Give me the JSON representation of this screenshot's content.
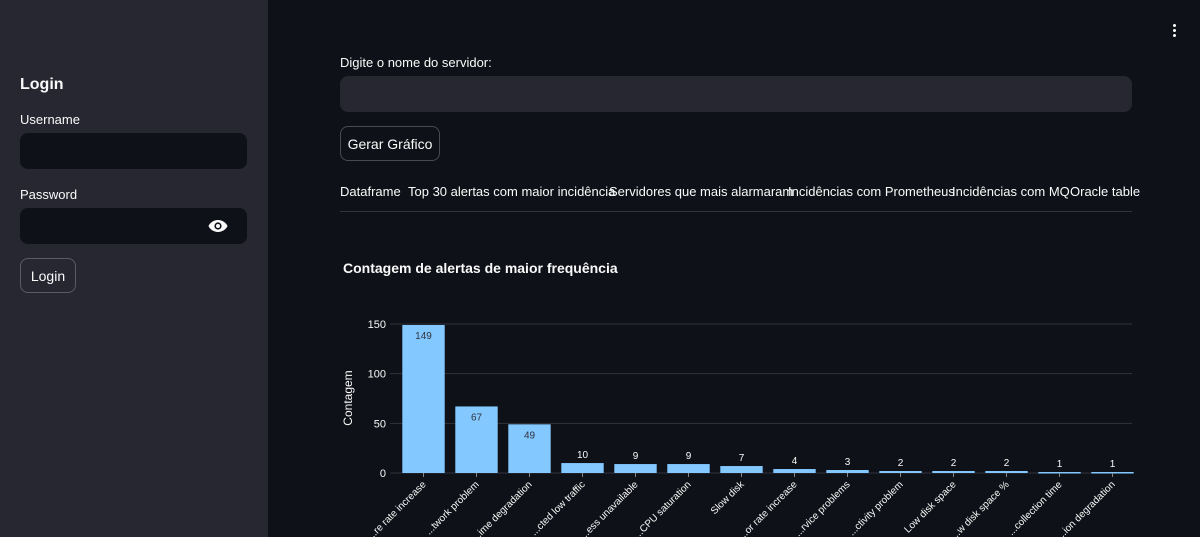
{
  "sidebar": {
    "title": "Login",
    "username_label": "Username",
    "username_value": "",
    "password_label": "Password",
    "password_value": "",
    "login_button": "Login",
    "eye_icon": "eye-icon"
  },
  "main": {
    "menu_icon": "vertical-ellipsis-icon",
    "server_label": "Digite o nome do servidor:",
    "server_value": "",
    "generate_button": "Gerar Gráfico",
    "tabs": [
      {
        "label": "Dataframe"
      },
      {
        "label": "Top 30 alertas com maior incidência"
      },
      {
        "label": "Servidores que mais alarmaram"
      },
      {
        "label": "Incidências com Prometheus"
      },
      {
        "label": "Incidências com MQ"
      },
      {
        "label": "Oracle table"
      }
    ]
  },
  "colors": {
    "bar": "#83c9ff",
    "background": "#0e1117",
    "sidebar": "#262730"
  },
  "chart_data": {
    "type": "bar",
    "title": "Contagem de alertas de maior frequência",
    "xlabel": "",
    "ylabel": "Contagem",
    "ylim": [
      0,
      150
    ],
    "yticks": [
      0,
      50,
      100,
      150
    ],
    "grid": true,
    "categories": [
      "...re rate increase",
      "...twork problem",
      "...ime degradation",
      "...cted low traffic",
      "...ess unavailable",
      "...CPU saturation",
      "Slow disk",
      "...or rate increase",
      "...rvice problems",
      "...ctivity problem",
      "Low disk space",
      "...w disk space %",
      "...collection time",
      "...ion degradation"
    ],
    "values": [
      149,
      67,
      49,
      10,
      9,
      9,
      7,
      4,
      3,
      2,
      2,
      2,
      1,
      1
    ]
  }
}
